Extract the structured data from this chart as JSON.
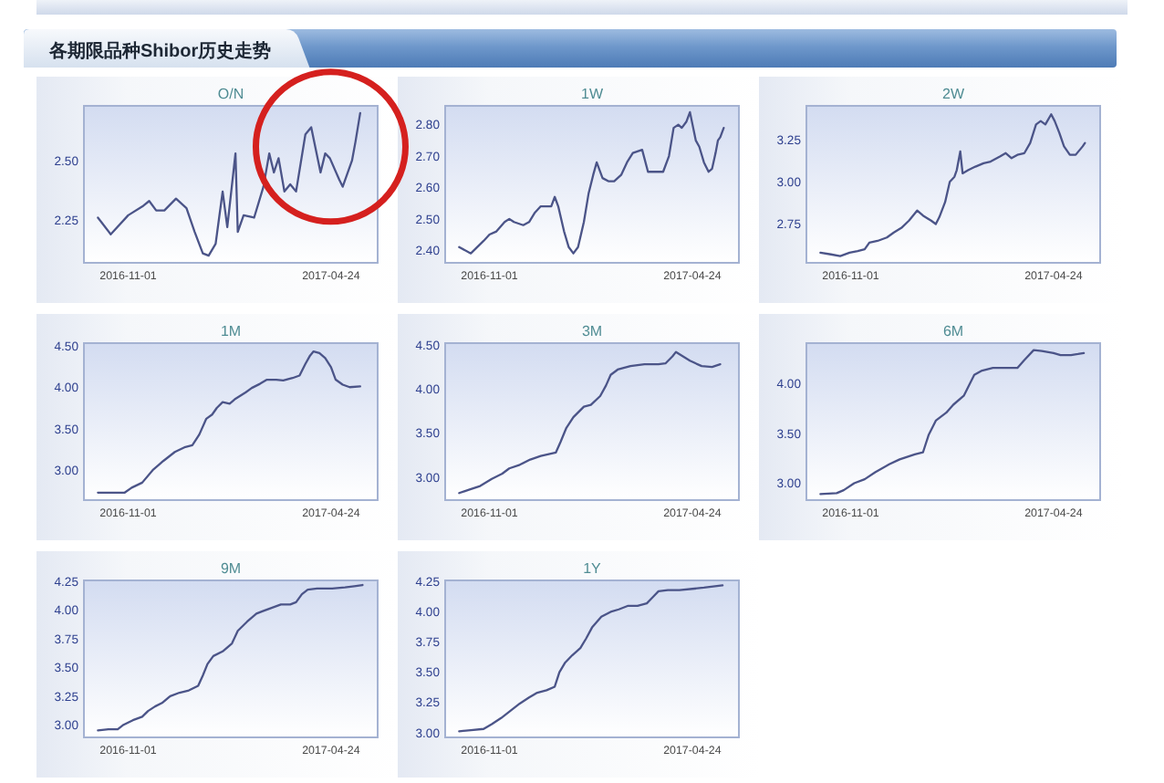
{
  "chart_data": [
    {
      "type": "other",
      "title": "各期限品种Shibor历史走势"
    },
    {
      "type": "line",
      "title": "O/N",
      "color": "#4b5488",
      "xlim": [
        "2016-09-24",
        "2017-06-03"
      ],
      "xticks": [
        "2016-11-01",
        "2017-04-24"
      ],
      "ylim": [
        2.07,
        2.73
      ],
      "yticks": [
        2.25,
        {
          "value": 2.5,
          "label": "2.50"
        }
      ],
      "x": [
        "2016-10-06",
        "2016-10-17",
        "2016-11-01",
        "2016-11-14",
        "2016-11-19",
        "2016-11-25",
        "2016-12-02",
        "2016-12-12",
        "2016-12-21",
        "2016-12-28",
        "2017-01-04",
        "2017-01-09",
        "2017-01-15",
        "2017-01-21",
        "2017-01-25",
        "2017-02-01",
        "2017-02-03",
        "2017-02-08",
        "2017-02-17",
        "2017-02-25",
        "2017-03-02",
        "2017-03-06",
        "2017-03-10",
        "2017-03-15",
        "2017-03-20",
        "2017-03-25",
        "2017-04-02",
        "2017-04-07",
        "2017-04-15",
        "2017-04-19",
        "2017-04-23",
        "2017-05-01",
        "2017-05-04",
        "2017-05-12",
        "2017-05-15",
        "2017-05-19"
      ],
      "values": [
        2.26,
        2.19,
        2.27,
        2.31,
        2.33,
        2.29,
        2.29,
        2.34,
        2.3,
        2.2,
        2.11,
        2.1,
        2.15,
        2.37,
        2.22,
        2.53,
        2.2,
        2.27,
        2.26,
        2.39,
        2.53,
        2.45,
        2.51,
        2.37,
        2.4,
        2.37,
        2.61,
        2.64,
        2.45,
        2.53,
        2.51,
        2.42,
        2.39,
        2.5,
        2.58,
        2.7
      ]
    },
    {
      "type": "line",
      "title": "1W",
      "color": "#4b5488",
      "xlim": [
        "2016-09-24",
        "2017-06-03"
      ],
      "xticks": [
        "2016-11-01",
        "2017-04-24"
      ],
      "ylim": [
        2.36,
        2.86
      ],
      "yticks": [
        {
          "value": 2.4,
          "label": "2.40"
        },
        {
          "value": 2.5,
          "label": "2.50"
        },
        {
          "value": 2.6,
          "label": "2.60"
        },
        {
          "value": 2.7,
          "label": "2.70"
        },
        {
          "value": 2.8,
          "label": "2.80"
        }
      ],
      "x": [
        "2016-10-06",
        "2016-10-16",
        "2016-10-27",
        "2016-11-01",
        "2016-11-07",
        "2016-11-14",
        "2016-11-18",
        "2016-11-22",
        "2016-11-30",
        "2016-12-05",
        "2016-12-10",
        "2016-12-15",
        "2016-12-24",
        "2016-12-27",
        "2016-12-30",
        "2017-01-04",
        "2017-01-08",
        "2017-01-12",
        "2017-01-16",
        "2017-01-21",
        "2017-01-25",
        "2017-01-29",
        "2017-02-01",
        "2017-02-06",
        "2017-02-11",
        "2017-02-16",
        "2017-02-22",
        "2017-02-27",
        "2017-03-04",
        "2017-03-12",
        "2017-03-17",
        "2017-03-23",
        "2017-03-30",
        "2017-04-04",
        "2017-04-08",
        "2017-04-12",
        "2017-04-15",
        "2017-04-19",
        "2017-04-22",
        "2017-04-27",
        "2017-04-30",
        "2017-05-04",
        "2017-05-08",
        "2017-05-11",
        "2017-05-14",
        "2017-05-16",
        "2017-05-18",
        "2017-05-21"
      ],
      "values": [
        2.41,
        2.39,
        2.43,
        2.45,
        2.46,
        2.49,
        2.5,
        2.49,
        2.48,
        2.49,
        2.52,
        2.54,
        2.54,
        2.57,
        2.54,
        2.46,
        2.41,
        2.39,
        2.41,
        2.49,
        2.58,
        2.64,
        2.68,
        2.63,
        2.62,
        2.62,
        2.64,
        2.68,
        2.71,
        2.72,
        2.65,
        2.65,
        2.65,
        2.7,
        2.79,
        2.8,
        2.79,
        2.81,
        2.84,
        2.75,
        2.73,
        2.68,
        2.65,
        2.66,
        2.71,
        2.75,
        2.76,
        2.79
      ]
    },
    {
      "type": "line",
      "title": "2W",
      "color": "#4b5488",
      "xlim": [
        "2016-09-24",
        "2017-06-03"
      ],
      "xticks": [
        "2016-11-01",
        "2017-04-24"
      ],
      "ylim": [
        2.52,
        3.45
      ],
      "yticks": [
        2.75,
        {
          "value": 3.0,
          "label": "3.00"
        },
        3.25
      ],
      "x": [
        "2016-10-06",
        "2016-10-15",
        "2016-10-23",
        "2016-10-31",
        "2016-11-07",
        "2016-11-13",
        "2016-11-17",
        "2016-11-24",
        "2016-12-02",
        "2016-12-08",
        "2016-12-15",
        "2016-12-21",
        "2016-12-28",
        "2017-01-02",
        "2017-01-09",
        "2017-01-13",
        "2017-01-16",
        "2017-01-21",
        "2017-01-25",
        "2017-01-29",
        "2017-01-31",
        "2017-02-03",
        "2017-02-05",
        "2017-02-10",
        "2017-02-16",
        "2017-02-23",
        "2017-03-01",
        "2017-03-09",
        "2017-03-14",
        "2017-03-19",
        "2017-03-24",
        "2017-03-30",
        "2017-04-04",
        "2017-04-09",
        "2017-04-13",
        "2017-04-17",
        "2017-04-22",
        "2017-04-25",
        "2017-04-29",
        "2017-05-03",
        "2017-05-08",
        "2017-05-13",
        "2017-05-19",
        "2017-05-21"
      ],
      "values": [
        2.58,
        2.57,
        2.56,
        2.58,
        2.59,
        2.6,
        2.64,
        2.65,
        2.67,
        2.7,
        2.73,
        2.77,
        2.83,
        2.8,
        2.77,
        2.75,
        2.79,
        2.88,
        3.0,
        3.03,
        3.07,
        3.18,
        3.05,
        3.07,
        3.09,
        3.11,
        3.12,
        3.15,
        3.17,
        3.14,
        3.16,
        3.17,
        3.23,
        3.34,
        3.36,
        3.34,
        3.4,
        3.36,
        3.29,
        3.21,
        3.16,
        3.16,
        3.21,
        3.23
      ]
    },
    {
      "type": "line",
      "title": "1M",
      "color": "#4b5488",
      "xlim": [
        "2016-09-24",
        "2017-06-03"
      ],
      "xticks": [
        "2016-11-01",
        "2017-04-24"
      ],
      "ylim": [
        2.64,
        4.53
      ],
      "yticks": [
        {
          "value": 3.0,
          "label": "3.00"
        },
        {
          "value": 3.5,
          "label": "3.50"
        },
        {
          "value": 4.0,
          "label": "4.00"
        },
        {
          "value": 4.5,
          "label": "4.50"
        }
      ],
      "x": [
        "2016-10-06",
        "2016-10-29",
        "2016-11-04",
        "2016-11-13",
        "2016-11-22",
        "2016-12-01",
        "2016-12-11",
        "2016-12-20",
        "2016-12-26",
        "2017-01-01",
        "2017-01-07",
        "2017-01-12",
        "2017-01-16",
        "2017-01-21",
        "2017-01-27",
        "2017-02-01",
        "2017-02-10",
        "2017-02-15",
        "2017-02-22",
        "2017-02-28",
        "2017-03-08",
        "2017-03-14",
        "2017-03-22",
        "2017-03-28",
        "2017-04-02",
        "2017-04-06",
        "2017-04-09",
        "2017-04-14",
        "2017-04-19",
        "2017-04-24",
        "2017-04-28",
        "2017-05-04",
        "2017-05-10",
        "2017-05-19"
      ],
      "values": [
        2.73,
        2.73,
        2.79,
        2.85,
        3.0,
        3.11,
        3.22,
        3.28,
        3.3,
        3.43,
        3.62,
        3.67,
        3.75,
        3.82,
        3.8,
        3.86,
        3.94,
        3.99,
        4.04,
        4.09,
        4.09,
        4.08,
        4.11,
        4.14,
        4.28,
        4.38,
        4.43,
        4.41,
        4.35,
        4.24,
        4.09,
        4.03,
        4.0,
        4.01
      ]
    },
    {
      "type": "line",
      "title": "3M",
      "color": "#4b5488",
      "xlim": [
        "2016-09-24",
        "2017-06-03"
      ],
      "xticks": [
        "2016-11-01",
        "2017-04-24"
      ],
      "ylim": [
        2.74,
        4.52
      ],
      "yticks": [
        {
          "value": 3.0,
          "label": "3.00"
        },
        {
          "value": 3.5,
          "label": "3.50"
        },
        {
          "value": 4.0,
          "label": "4.00"
        },
        {
          "value": 4.5,
          "label": "4.50"
        }
      ],
      "x": [
        "2016-10-06",
        "2016-10-15",
        "2016-10-24",
        "2016-11-03",
        "2016-11-12",
        "2016-11-18",
        "2016-11-27",
        "2016-12-06",
        "2016-12-15",
        "2016-12-28",
        "2017-01-01",
        "2017-01-06",
        "2017-01-12",
        "2017-01-21",
        "2017-01-27",
        "2017-02-04",
        "2017-02-09",
        "2017-02-13",
        "2017-02-19",
        "2017-03-02",
        "2017-03-14",
        "2017-03-26",
        "2017-04-01",
        "2017-04-07",
        "2017-04-10",
        "2017-04-16",
        "2017-04-22",
        "2017-05-02",
        "2017-05-11",
        "2017-05-18"
      ],
      "values": [
        2.82,
        2.86,
        2.9,
        2.98,
        3.04,
        3.1,
        3.14,
        3.2,
        3.24,
        3.28,
        3.4,
        3.56,
        3.68,
        3.8,
        3.82,
        3.92,
        4.04,
        4.16,
        4.22,
        4.26,
        4.28,
        4.28,
        4.29,
        4.37,
        4.42,
        4.37,
        4.32,
        4.26,
        4.25,
        4.28
      ]
    },
    {
      "type": "line",
      "title": "6M",
      "color": "#4b5488",
      "xlim": [
        "2016-09-24",
        "2017-06-03"
      ],
      "xticks": [
        "2016-11-01",
        "2017-04-24"
      ],
      "ylim": [
        2.83,
        4.41
      ],
      "yticks": [
        {
          "value": 3.0,
          "label": "3.00"
        },
        {
          "value": 3.5,
          "label": "3.50"
        },
        {
          "value": 4.0,
          "label": "4.00"
        }
      ],
      "x": [
        "2016-10-06",
        "2016-10-20",
        "2016-10-26",
        "2016-11-04",
        "2016-11-13",
        "2016-11-22",
        "2016-12-04",
        "2016-12-13",
        "2016-12-26",
        "2017-01-02",
        "2017-01-07",
        "2017-01-13",
        "2017-01-22",
        "2017-01-28",
        "2017-02-06",
        "2017-02-15",
        "2017-02-21",
        "2017-03-03",
        "2017-03-12",
        "2017-03-24",
        "2017-03-30",
        "2017-04-07",
        "2017-04-14",
        "2017-04-24",
        "2017-04-30",
        "2017-05-09",
        "2017-05-15",
        "2017-05-20"
      ],
      "values": [
        2.89,
        2.9,
        2.93,
        3.0,
        3.04,
        3.11,
        3.19,
        3.24,
        3.29,
        3.31,
        3.49,
        3.63,
        3.71,
        3.79,
        3.88,
        4.09,
        4.13,
        4.16,
        4.16,
        4.16,
        4.24,
        4.34,
        4.33,
        4.31,
        4.29,
        4.29,
        4.3,
        4.31
      ]
    },
    {
      "type": "line",
      "title": "9M",
      "color": "#4b5488",
      "xlim": [
        "2016-09-24",
        "2017-06-03"
      ],
      "xticks": [
        "2016-11-01",
        "2017-04-24"
      ],
      "ylim": [
        2.89,
        4.26
      ],
      "yticks": [
        {
          "value": 3.0,
          "label": "3.00"
        },
        3.25,
        {
          "value": 3.5,
          "label": "3.50"
        },
        3.75,
        {
          "value": 4.0,
          "label": "4.00"
        },
        4.25
      ],
      "x": [
        "2016-10-06",
        "2016-10-15",
        "2016-10-23",
        "2016-10-28",
        "2016-11-05",
        "2016-11-13",
        "2016-11-18",
        "2016-11-24",
        "2016-11-30",
        "2016-12-07",
        "2016-12-15",
        "2016-12-23",
        "2016-12-31",
        "2017-01-04",
        "2017-01-08",
        "2017-01-13",
        "2017-01-21",
        "2017-01-29",
        "2017-02-03",
        "2017-02-11",
        "2017-02-19",
        "2017-02-24",
        "2017-03-04",
        "2017-03-12",
        "2017-03-20",
        "2017-03-25",
        "2017-03-30",
        "2017-04-04",
        "2017-04-12",
        "2017-04-25",
        "2017-05-06",
        "2017-05-14",
        "2017-05-21"
      ],
      "values": [
        2.95,
        2.96,
        2.96,
        3.0,
        3.04,
        3.07,
        3.12,
        3.16,
        3.19,
        3.25,
        3.28,
        3.3,
        3.34,
        3.43,
        3.53,
        3.6,
        3.64,
        3.71,
        3.82,
        3.9,
        3.97,
        3.99,
        4.02,
        4.05,
        4.05,
        4.07,
        4.14,
        4.18,
        4.19,
        4.19,
        4.2,
        4.21,
        4.22
      ]
    },
    {
      "type": "line",
      "title": "1Y",
      "color": "#4b5488",
      "xlim": [
        "2016-09-24",
        "2017-06-03"
      ],
      "xticks": [
        "2016-11-01",
        "2017-04-24"
      ],
      "ylim": [
        2.96,
        4.26
      ],
      "yticks": [
        {
          "value": 3.0,
          "label": "3.00"
        },
        3.25,
        {
          "value": 3.5,
          "label": "3.50"
        },
        3.75,
        {
          "value": 4.0,
          "label": "4.00"
        },
        4.25
      ],
      "x": [
        "2016-10-06",
        "2016-10-16",
        "2016-10-27",
        "2016-11-03",
        "2016-11-11",
        "2016-11-19",
        "2016-11-27",
        "2016-12-05",
        "2016-12-12",
        "2016-12-20",
        "2016-12-27",
        "2016-12-31",
        "2017-01-05",
        "2017-01-11",
        "2017-01-18",
        "2017-01-23",
        "2017-01-28",
        "2017-02-05",
        "2017-02-13",
        "2017-02-20",
        "2017-02-28",
        "2017-03-08",
        "2017-03-16",
        "2017-03-21",
        "2017-03-26",
        "2017-04-03",
        "2017-04-13",
        "2017-04-24",
        "2017-05-04",
        "2017-05-12",
        "2017-05-20"
      ],
      "values": [
        3.01,
        3.02,
        3.03,
        3.07,
        3.12,
        3.18,
        3.24,
        3.29,
        3.33,
        3.35,
        3.38,
        3.5,
        3.58,
        3.64,
        3.7,
        3.78,
        3.87,
        3.96,
        4.0,
        4.02,
        4.05,
        4.05,
        4.07,
        4.12,
        4.17,
        4.18,
        4.18,
        4.19,
        4.2,
        4.21,
        4.22
      ]
    }
  ]
}
